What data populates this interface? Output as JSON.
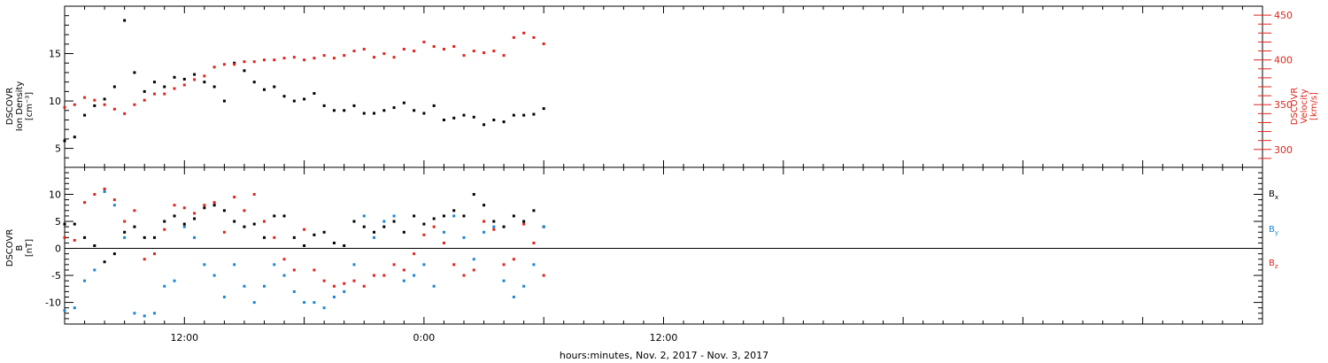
{
  "colors": {
    "ion_density": "#000000",
    "velocity": "#e0241c",
    "bx": "#000000",
    "by": "#1a86d6",
    "bz": "#e0241c"
  },
  "chart_data": [
    {
      "type": "scatter",
      "panel": "top",
      "x_axis": {
        "label": "hours:minutes, Nov.  2, 2017 - Nov.  3, 2017",
        "range_hours": [
          6.0,
          66.0
        ],
        "major_ticks": [
          {
            "hours": 12,
            "label": "12:00"
          },
          {
            "hours": 24,
            "label": "0:00"
          },
          {
            "hours": 36,
            "label": "12:00"
          }
        ]
      },
      "left_axis": {
        "label_lines": [
          "DSCOVR",
          "Ion Density",
          "[cm⁻³]"
        ],
        "ylim": [
          3.0,
          20.0
        ],
        "ticks": [
          "5",
          "10",
          "15"
        ],
        "tick_values": [
          5,
          10,
          15
        ]
      },
      "right_axis": {
        "label_lines": [
          "DSCOVR",
          "Velocity",
          "[km/s]"
        ],
        "ylim": [
          280,
          460
        ],
        "ticks": [
          "300",
          "350",
          "400",
          "450"
        ],
        "tick_values": [
          300,
          350,
          400,
          450
        ]
      },
      "series": [
        {
          "key": "ion_density",
          "axis": "left",
          "color_key": "ion_density",
          "x": [
            6.0,
            6.5,
            7.0,
            7.5,
            8.0,
            8.5,
            9.0,
            9.5,
            10.0,
            10.5,
            11.0,
            11.5,
            12.0,
            12.5,
            13.0,
            13.5,
            14.0,
            14.5,
            15.0,
            15.5,
            16.0,
            16.5,
            17.0,
            17.5,
            18.0,
            18.5,
            19.0,
            19.5,
            20.0,
            20.5,
            21.0,
            21.5,
            22.0,
            22.5,
            23.0,
            23.5,
            24.0,
            24.5,
            25.0,
            25.5,
            26.0,
            26.5,
            27.0,
            27.5,
            28.0,
            28.5,
            29.0,
            29.5,
            30.0
          ],
          "y": [
            5.8,
            6.2,
            8.5,
            9.5,
            10.2,
            11.5,
            18.5,
            13.0,
            11.0,
            12.0,
            11.5,
            12.5,
            12.3,
            12.8,
            12.0,
            11.5,
            10.0,
            14.0,
            13.2,
            12.0,
            11.2,
            11.5,
            10.5,
            10.0,
            10.2,
            10.8,
            9.5,
            9.0,
            9.0,
            9.5,
            8.7,
            8.7,
            9.0,
            9.3,
            9.8,
            9.0,
            8.7,
            9.5,
            8.0,
            8.2,
            8.5,
            8.3,
            7.5,
            8.0,
            7.8,
            8.5,
            8.5,
            8.6,
            9.2
          ]
        },
        {
          "key": "velocity",
          "axis": "right",
          "color_key": "velocity",
          "x": [
            6.0,
            6.5,
            7.0,
            7.5,
            8.0,
            8.5,
            9.0,
            9.5,
            10.0,
            10.5,
            11.0,
            11.5,
            12.0,
            12.5,
            13.0,
            13.5,
            14.0,
            14.5,
            15.0,
            15.5,
            16.0,
            16.5,
            17.0,
            17.5,
            18.0,
            18.5,
            19.0,
            19.5,
            20.0,
            20.5,
            21.0,
            21.5,
            22.0,
            22.5,
            23.0,
            23.5,
            24.0,
            24.5,
            25.0,
            25.5,
            26.0,
            26.5,
            27.0,
            27.5,
            28.0,
            28.5,
            29.0,
            29.5,
            30.0
          ],
          "y": [
            347,
            350,
            358,
            355,
            350,
            345,
            340,
            350,
            355,
            362,
            362,
            368,
            372,
            378,
            382,
            392,
            395,
            395,
            398,
            398,
            400,
            400,
            402,
            403,
            400,
            402,
            405,
            402,
            405,
            410,
            412,
            403,
            407,
            403,
            412,
            410,
            420,
            415,
            412,
            415,
            405,
            410,
            408,
            410,
            405,
            425,
            430,
            425,
            418
          ]
        }
      ]
    },
    {
      "type": "scatter",
      "panel": "bottom",
      "left_axis": {
        "label_lines": [
          "DSCOVR",
          "B",
          "[nT]"
        ],
        "ylim": [
          -14.0,
          15.0
        ],
        "ticks": [
          "10",
          "5",
          "0",
          "-5",
          "-10"
        ],
        "tick_values": [
          10,
          5,
          0,
          -5,
          -10
        ]
      },
      "zero_line": 0,
      "legend": {
        "placement": "right",
        "entries": [
          {
            "key": "bx",
            "label": "B",
            "sub": "x"
          },
          {
            "key": "by",
            "label": "B",
            "sub": "y"
          },
          {
            "key": "bz",
            "label": "B",
            "sub": "z"
          }
        ]
      },
      "series": [
        {
          "key": "bx",
          "color_key": "bx",
          "x": [
            6.0,
            6.5,
            7.0,
            7.5,
            8.0,
            8.5,
            9.0,
            9.5,
            10.0,
            10.5,
            11.0,
            11.5,
            12.0,
            12.5,
            13.0,
            13.5,
            14.0,
            14.5,
            15.0,
            15.5,
            16.0,
            16.5,
            17.0,
            17.5,
            18.0,
            18.5,
            19.0,
            19.5,
            20.0,
            20.5,
            21.0,
            21.5,
            22.0,
            22.5,
            23.0,
            23.5,
            24.0,
            24.5,
            25.0,
            25.5,
            26.0,
            26.5,
            27.0,
            27.5,
            28.0,
            28.5,
            29.0,
            29.5,
            30.0
          ],
          "y": [
            4.5,
            4.5,
            2.0,
            0.5,
            -2.5,
            -1.0,
            3.0,
            4.0,
            2.0,
            2.0,
            5.0,
            6.0,
            4.5,
            5.5,
            7.5,
            8.0,
            7.0,
            5.0,
            4.0,
            4.5,
            2.0,
            6.0,
            6.0,
            2.0,
            0.5,
            2.5,
            3.0,
            1.0,
            0.5,
            5.0,
            4.0,
            3.0,
            4.0,
            5.0,
            3.0,
            6.0,
            4.5,
            5.5,
            6.0,
            7.0,
            6.0,
            10.0,
            8.0,
            5.0,
            4.0,
            6.0,
            5.0,
            7.0,
            4.0
          ]
        },
        {
          "key": "by",
          "color_key": "by",
          "x": [
            6.0,
            6.5,
            7.0,
            7.5,
            8.0,
            8.5,
            9.0,
            9.5,
            10.0,
            10.5,
            11.0,
            11.5,
            12.0,
            12.5,
            13.0,
            13.5,
            14.0,
            14.5,
            15.0,
            15.5,
            16.0,
            16.5,
            17.0,
            17.5,
            18.0,
            18.5,
            19.0,
            19.5,
            20.0,
            20.5,
            21.0,
            21.5,
            22.0,
            22.5,
            23.0,
            23.5,
            24.0,
            24.5,
            25.0,
            25.5,
            26.0,
            26.5,
            27.0,
            27.5,
            28.0,
            28.5,
            29.0,
            29.5,
            30.0
          ],
          "y": [
            -11.5,
            -11.0,
            -6.0,
            -4.0,
            10.5,
            8.0,
            2.0,
            -12.0,
            -12.5,
            -12.0,
            -7.0,
            -6.0,
            4.0,
            2.0,
            -3.0,
            -5.0,
            -9.0,
            -3.0,
            -7.0,
            -10.0,
            -7.0,
            -3.0,
            -5.0,
            -8.0,
            -10.0,
            -10.0,
            -11.0,
            -9.0,
            -8.0,
            -3.0,
            6.0,
            2.0,
            5.0,
            6.0,
            -6.0,
            -5.0,
            -3.0,
            -7.0,
            3.0,
            6.0,
            2.0,
            -2.0,
            3.0,
            4.0,
            -6.0,
            -9.0,
            -7.0,
            -3.0,
            4.0
          ]
        },
        {
          "key": "bz",
          "color_key": "bz",
          "x": [
            6.0,
            6.5,
            7.0,
            7.5,
            8.0,
            8.5,
            9.0,
            9.5,
            10.0,
            10.5,
            11.0,
            11.5,
            12.0,
            12.5,
            13.0,
            13.5,
            14.0,
            14.5,
            15.0,
            15.5,
            16.0,
            16.5,
            17.0,
            17.5,
            18.0,
            18.5,
            19.0,
            19.5,
            20.0,
            20.5,
            21.0,
            21.5,
            22.0,
            22.5,
            23.0,
            23.5,
            24.0,
            24.5,
            25.0,
            25.5,
            26.0,
            26.5,
            27.0,
            27.5,
            28.0,
            28.5,
            29.0,
            29.5,
            30.0
          ],
          "y": [
            2.0,
            1.5,
            8.5,
            10.0,
            11.0,
            9.0,
            5.0,
            7.0,
            -2.0,
            -1.0,
            3.5,
            8.0,
            7.5,
            6.5,
            8.0,
            8.5,
            3.0,
            9.5,
            7.0,
            10.0,
            5.0,
            2.0,
            -2.0,
            -4.0,
            3.5,
            -4.0,
            -6.0,
            -7.0,
            -6.5,
            -6.0,
            -7.0,
            -5.0,
            -5.0,
            -3.0,
            -4.0,
            -1.0,
            2.5,
            4.0,
            1.0,
            -3.0,
            -5.0,
            -4.0,
            5.0,
            3.5,
            -3.0,
            -2.0,
            4.5,
            1.0,
            -5.0
          ]
        }
      ]
    }
  ]
}
